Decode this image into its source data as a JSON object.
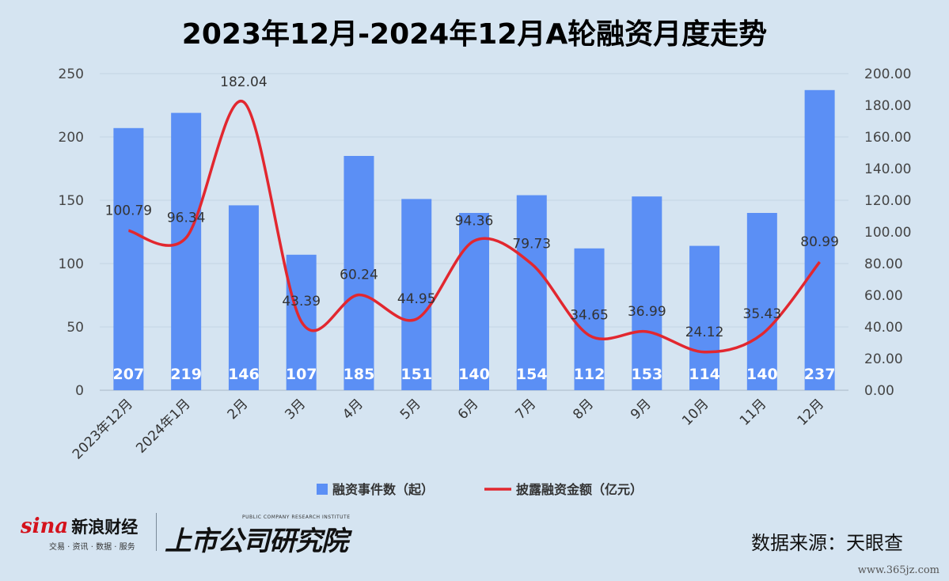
{
  "chart_data": {
    "type": "bar+line",
    "title": "2023年12月-2024年12月A轮融资月度走势",
    "categories": [
      "2023年12月",
      "2024年1月",
      "2月",
      "3月",
      "4月",
      "5月",
      "6月",
      "7月",
      "8月",
      "9月",
      "10月",
      "11月",
      "12月"
    ],
    "series": [
      {
        "name": "融资事件数（起）",
        "type": "bar",
        "axis": "left",
        "color": "#5b8ff5",
        "values": [
          207,
          219,
          146,
          107,
          185,
          151,
          140,
          154,
          112,
          153,
          114,
          140,
          237
        ]
      },
      {
        "name": "披露融资金额（亿元）",
        "type": "line",
        "axis": "right",
        "color": "#e2272f",
        "values": [
          100.79,
          96.34,
          182.04,
          43.39,
          60.24,
          44.95,
          94.36,
          79.73,
          34.65,
          36.99,
          24.12,
          35.43,
          80.99
        ]
      }
    ],
    "left_axis": {
      "min": 0,
      "max": 250,
      "ticks": [
        0,
        50,
        100,
        150,
        200,
        250
      ]
    },
    "right_axis": {
      "min": 0,
      "max": 200,
      "ticks": [
        "0.00",
        "20.00",
        "40.00",
        "60.00",
        "80.00",
        "100.00",
        "120.00",
        "140.00",
        "160.00",
        "180.00",
        "200.00"
      ]
    },
    "grid": true,
    "legend_position": "bottom"
  },
  "footer": {
    "source": "数据来源：天眼查",
    "watermark": "www.365jz.com",
    "logo_sina_mark": "sina",
    "logo_sina_name": "新浪财经",
    "logo_sina_sub": "交易 · 资讯 · 数据 · 服务",
    "logo_inst_en": "PUBLIC COMPANY RESEARCH INSTITUTE",
    "logo_inst_cn": "上市公司研究院"
  },
  "colors": {
    "background": "#d5e4f1",
    "bar": "#5b8ff5",
    "line": "#e2272f",
    "grid": "#c3d3e2"
  }
}
